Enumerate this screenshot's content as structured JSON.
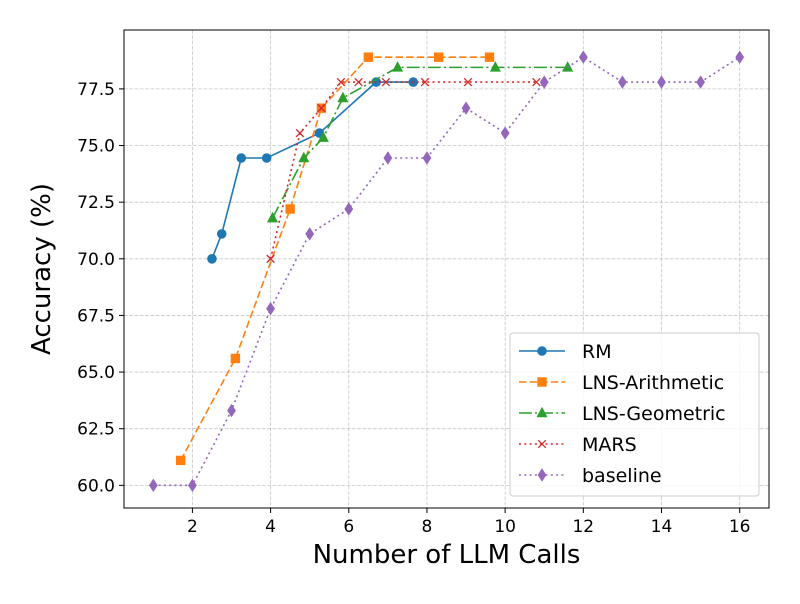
{
  "chart_data": {
    "type": "line",
    "title": "",
    "xlabel": "Number of LLM Calls",
    "ylabel": "Accuracy (%)",
    "xlim": [
      0.25,
      16.75
    ],
    "ylim": [
      59.0,
      80.1
    ],
    "xticks": [
      2,
      4,
      6,
      8,
      10,
      12,
      14,
      16
    ],
    "xtick_labels": [
      "2",
      "4",
      "6",
      "8",
      "10",
      "12",
      "14",
      "16"
    ],
    "yticks": [
      60.0,
      62.5,
      65.0,
      67.5,
      70.0,
      72.5,
      75.0,
      77.5
    ],
    "ytick_labels": [
      "60.0",
      "62.5",
      "65.0",
      "67.5",
      "70.0",
      "72.5",
      "75.0",
      "77.5"
    ],
    "grid": true,
    "legend_position": "lower-right",
    "series": [
      {
        "name": "RM",
        "color": "#1f77b4",
        "linestyle": "solid",
        "marker": "circle",
        "x": [
          2.5,
          2.75,
          3.25,
          3.9,
          5.25,
          6.7,
          7.65
        ],
        "y": [
          70.0,
          71.1,
          74.45,
          74.45,
          75.55,
          77.8,
          77.8
        ]
      },
      {
        "name": "LNS-Arithmetic",
        "color": "#ff7f0e",
        "linestyle": "dashed",
        "marker": "square",
        "x": [
          1.7,
          3.1,
          4.5,
          5.3,
          6.5,
          8.3,
          9.6
        ],
        "y": [
          61.1,
          65.6,
          72.2,
          76.65,
          78.9,
          78.9,
          78.9
        ]
      },
      {
        "name": "LNS-Geometric",
        "color": "#2ca02c",
        "linestyle": "dashdot",
        "marker": "triangle",
        "x": [
          4.05,
          4.85,
          5.35,
          5.85,
          7.25,
          9.75,
          11.6
        ],
        "y": [
          71.8,
          74.45,
          75.35,
          77.1,
          78.45,
          78.45,
          78.45
        ]
      },
      {
        "name": "MARS",
        "color": "#d62728",
        "linestyle": "dotted",
        "marker": "x",
        "x": [
          4.0,
          4.75,
          5.3,
          5.8,
          6.25,
          6.95,
          7.95,
          9.05,
          10.8
        ],
        "y": [
          70.0,
          75.55,
          76.65,
          77.8,
          77.8,
          77.8,
          77.8,
          77.8,
          77.8
        ]
      },
      {
        "name": "baseline",
        "color": "#9467bd",
        "linestyle": "dotted",
        "marker": "diamond",
        "x": [
          1,
          2,
          3,
          4,
          5,
          6,
          7,
          8,
          9,
          10,
          11,
          12,
          13,
          14,
          15,
          16
        ],
        "y": [
          60.0,
          60.0,
          63.3,
          67.8,
          71.1,
          72.2,
          74.45,
          74.45,
          76.65,
          75.55,
          77.8,
          78.9,
          77.8,
          77.8,
          77.8,
          78.9
        ]
      }
    ]
  }
}
